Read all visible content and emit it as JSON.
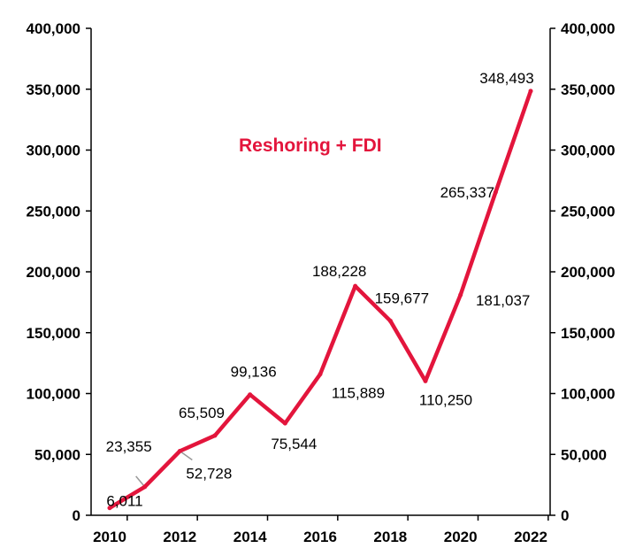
{
  "chart_data": {
    "type": "line",
    "title": "",
    "xlabel": "",
    "ylabel": "",
    "ylim": [
      0,
      400000
    ],
    "yticks": [
      "0",
      "50,000",
      "100,000",
      "150,000",
      "200,000",
      "250,000",
      "300,000",
      "350,000",
      "400,000"
    ],
    "xticks": [
      "2010",
      "2012",
      "2014",
      "2016",
      "2018",
      "2020",
      "2022"
    ],
    "secondary_y_axis": true,
    "grid": false,
    "line_color": "#e3153c",
    "annotation": {
      "text": "Reshoring + FDI",
      "color": "#e3153c"
    },
    "series": [
      {
        "x": [
          2010,
          2011,
          2012,
          2013,
          2014,
          2015,
          2016,
          2017,
          2018,
          2019,
          2020,
          2021,
          2022
        ],
        "values": [
          6011,
          23355,
          52728,
          65509,
          99136,
          75544,
          115889,
          188228,
          159677,
          110250,
          181037,
          265337,
          348493
        ],
        "labels": [
          "6,011",
          "23,355",
          "52,728",
          "65,509",
          "99,136",
          "75,544",
          "115,889",
          "188,228",
          "159,677",
          "110,250",
          "181,037",
          "265,337",
          "348,493"
        ]
      }
    ]
  }
}
